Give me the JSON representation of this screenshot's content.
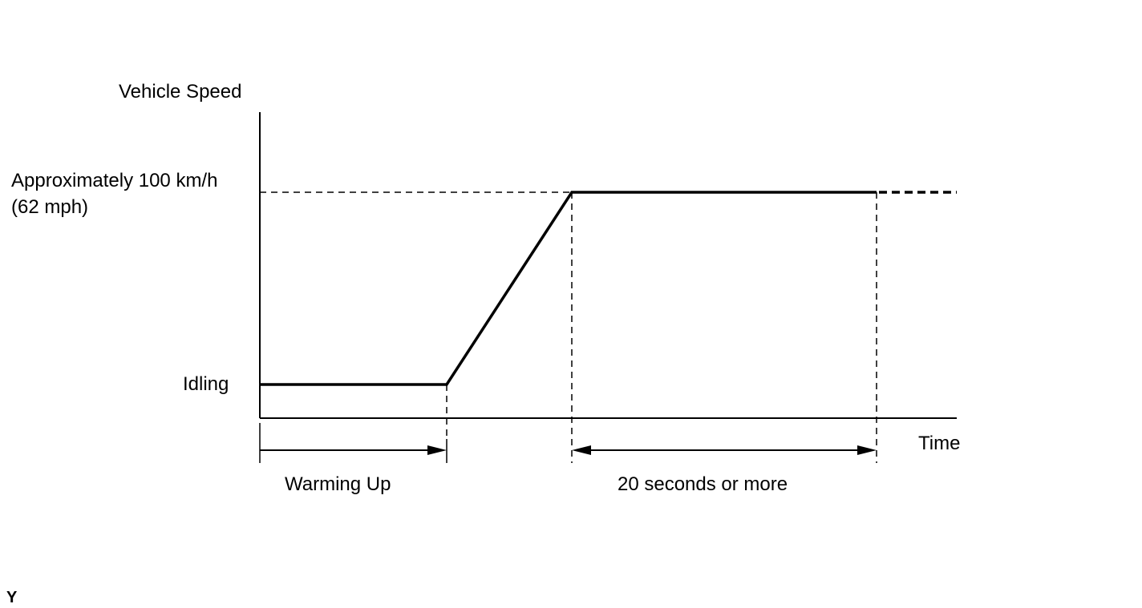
{
  "diagram": {
    "y_axis_label": "Vehicle Speed",
    "x_axis_label": "Time",
    "level_high_line1": "Approximately 100 km/h",
    "level_high_line2": "(62 mph)",
    "level_low": "Idling",
    "interval_1": "Warming Up",
    "interval_2": "20 seconds or more",
    "figure_code": "Y",
    "line_color": "#000000"
  }
}
